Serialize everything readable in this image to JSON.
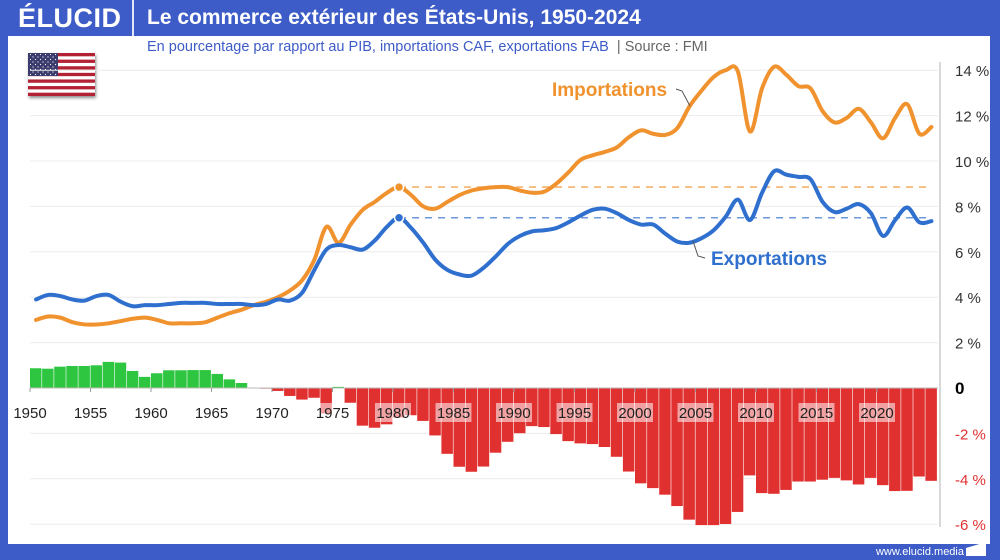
{
  "brand": "ÉLUCID",
  "title": "Le commerce extérieur des États-Unis, 1950-2024",
  "subtitle": "En pourcentage par rapport au PIB, importations CAF, exportations FAB",
  "source": "Source : FMI",
  "footer": "www.elucid.media",
  "flag": "us-flag",
  "colors": {
    "brand": "#3d5cc7",
    "imports": "#f0922e",
    "exports": "#2f6fce",
    "surplus": "#2ec640",
    "deficit": "#e03030"
  },
  "chart_data": {
    "type": "line+bar",
    "title": "Le commerce extérieur des États-Unis, 1950-2024",
    "ylim": [
      -6,
      14
    ],
    "grid": true,
    "y_ticks": [
      {
        "v": 14,
        "label": "14 %"
      },
      {
        "v": 12,
        "label": "12 %"
      },
      {
        "v": 10,
        "label": "10 %"
      },
      {
        "v": 8,
        "label": "8 %"
      },
      {
        "v": 6,
        "label": "6 %"
      },
      {
        "v": 4,
        "label": "4 %"
      },
      {
        "v": 2,
        "label": "2 %"
      },
      {
        "v": 0,
        "label": "0"
      },
      {
        "v": -2,
        "label": "-2 %"
      },
      {
        "v": -4,
        "label": "-4 %"
      },
      {
        "v": -6,
        "label": "-6 %"
      }
    ],
    "x_ticks": [
      "1950",
      "1955",
      "1960",
      "1965",
      "1970",
      "1975",
      "1980",
      "1985",
      "1990",
      "1995",
      "2000",
      "2005",
      "2010",
      "2015",
      "2020"
    ],
    "x_start": 1950,
    "series": [
      {
        "name": "Importations",
        "type": "line",
        "values": [
          3.0,
          3.15,
          3.1,
          2.9,
          2.8,
          2.8,
          2.85,
          2.95,
          3.05,
          3.1,
          3.0,
          2.85,
          2.85,
          2.85,
          2.9,
          3.1,
          3.3,
          3.45,
          3.65,
          3.8,
          4.0,
          4.3,
          4.75,
          5.65,
          7.1,
          6.4,
          7.2,
          7.85,
          8.2,
          8.6,
          8.85,
          8.5,
          8.0,
          7.9,
          8.2,
          8.5,
          8.7,
          8.8,
          8.85,
          8.85,
          8.7,
          8.6,
          8.65,
          9.0,
          9.5,
          10.05,
          10.25,
          10.4,
          10.6,
          11.05,
          11.35,
          11.2,
          11.15,
          11.45,
          12.4,
          13.1,
          13.7,
          14.0,
          13.95,
          11.3,
          13.2,
          14.15,
          13.8,
          13.3,
          13.2,
          12.2,
          11.7,
          11.9,
          12.3,
          11.7,
          11.0,
          11.9,
          12.5,
          11.2,
          11.5
        ]
      },
      {
        "name": "Exportations",
        "type": "line",
        "values": [
          3.9,
          4.1,
          4.05,
          3.9,
          3.85,
          4.05,
          4.1,
          3.8,
          3.6,
          3.65,
          3.65,
          3.7,
          3.75,
          3.75,
          3.75,
          3.7,
          3.7,
          3.7,
          3.65,
          3.7,
          3.9,
          3.85,
          4.2,
          5.2,
          6.1,
          6.3,
          6.2,
          6.1,
          6.5,
          7.1,
          7.5,
          7.05,
          6.4,
          5.65,
          5.2,
          5.0,
          4.95,
          5.3,
          5.8,
          6.35,
          6.7,
          6.9,
          6.95,
          7.05,
          7.3,
          7.6,
          7.85,
          7.9,
          7.7,
          7.4,
          7.2,
          7.2,
          6.8,
          6.45,
          6.4,
          6.6,
          6.95,
          7.55,
          8.3,
          7.4,
          8.6,
          9.55,
          9.4,
          9.3,
          9.2,
          8.2,
          7.75,
          7.9,
          8.1,
          7.7,
          6.7,
          7.4,
          7.95,
          7.3,
          7.35
        ]
      },
      {
        "type": "bar",
        "values": [
          0.87,
          0.85,
          0.94,
          0.97,
          0.97,
          1.0,
          1.15,
          1.12,
          0.75,
          0.49,
          0.65,
          0.78,
          0.78,
          0.79,
          0.79,
          0.62,
          0.38,
          0.22,
          0.01,
          -0.03,
          -0.13,
          -0.35,
          -0.51,
          -0.43,
          -1.12,
          0.05,
          -0.65,
          -1.66,
          -1.75,
          -1.6,
          -1.3,
          -1.2,
          -1.45,
          -2.09,
          -2.9,
          -3.47,
          -3.69,
          -3.46,
          -2.85,
          -2.37,
          -1.99,
          -1.68,
          -1.72,
          -2.03,
          -2.34,
          -2.44,
          -2.47,
          -2.6,
          -3.03,
          -3.68,
          -4.2,
          -4.41,
          -4.7,
          -5.2,
          -5.8,
          -6.04,
          -6.04,
          -5.99,
          -5.46,
          -3.85,
          -4.63,
          -4.66,
          -4.49,
          -4.12,
          -4.12,
          -4.04,
          -3.96,
          -4.07,
          -4.25,
          -3.96,
          -4.28,
          -4.54,
          -4.53,
          -3.9,
          -4.09
        ]
      }
    ],
    "reference_1980": {
      "imports": 8.85,
      "exports": 7.5
    }
  }
}
